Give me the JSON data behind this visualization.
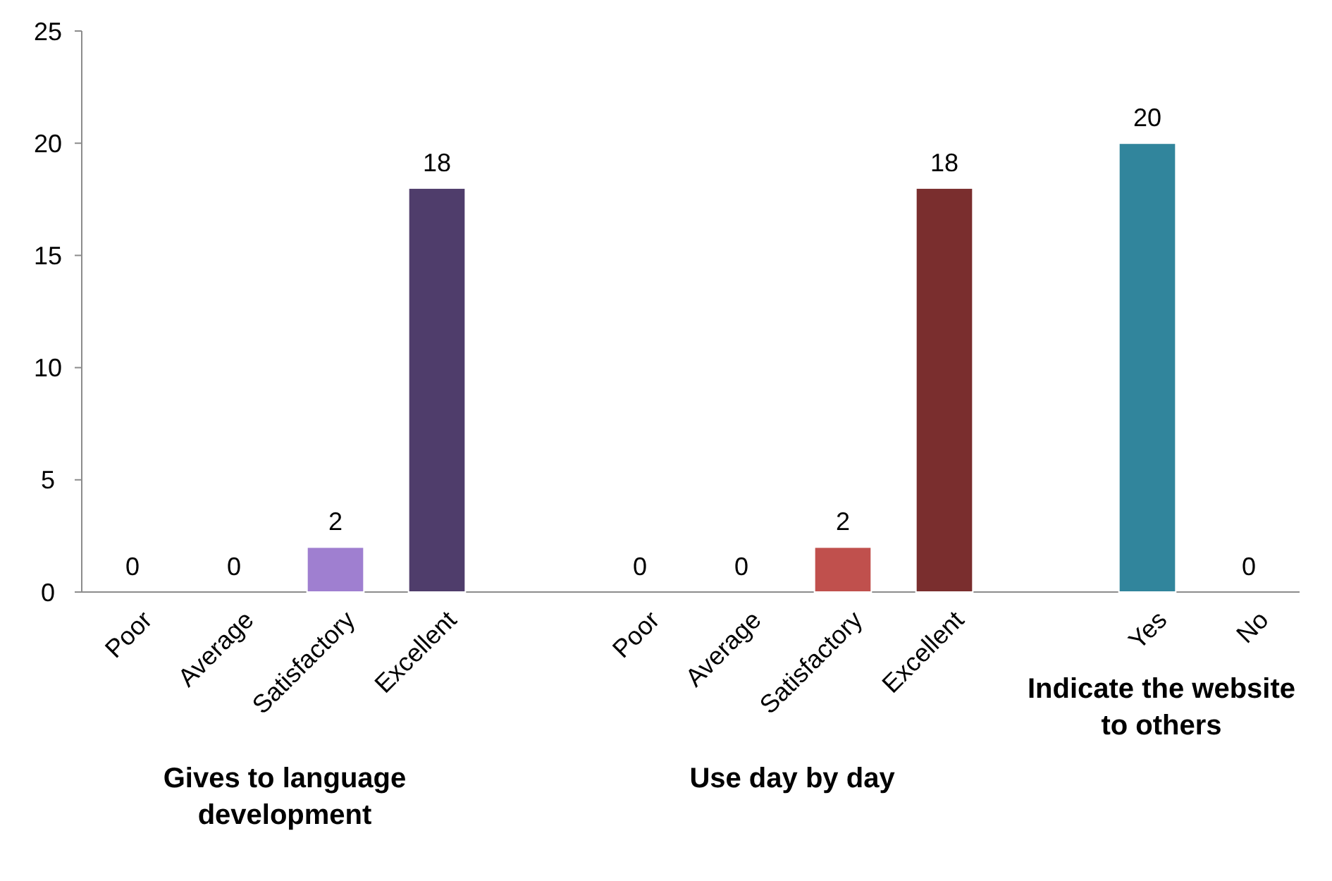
{
  "chart_data": {
    "type": "bar",
    "categories": [
      "Poor",
      "Average",
      "Satisfactory",
      "Excellent",
      null,
      "Poor",
      "Average",
      "Satisfactory",
      "Excellent",
      null,
      "Yes",
      "No"
    ],
    "values": [
      0,
      0,
      2,
      18,
      null,
      0,
      0,
      2,
      18,
      null,
      20,
      0
    ],
    "colors": [
      "#9f7fd0",
      "#4f3d6b",
      "#9f7fd0",
      "#4f3d6b",
      null,
      "#c0504d",
      "#7a2e2e",
      "#c0504d",
      "#7a2e2e",
      null,
      "#31859c",
      "#31859c"
    ],
    "ylim": [
      0,
      25
    ],
    "yticks": [
      0,
      5,
      10,
      15,
      20,
      25
    ],
    "grid": false,
    "data_labels": true,
    "annotations": [
      "Gives to language development",
      "Use day by day",
      "Indicate the website to others"
    ]
  }
}
